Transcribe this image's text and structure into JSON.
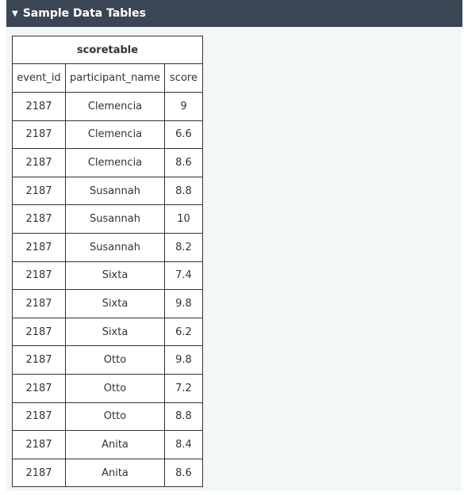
{
  "panel": {
    "title": "Sample Data Tables"
  },
  "table": {
    "caption": "scoretable",
    "columns": [
      "event_id",
      "participant_name",
      "score"
    ],
    "rows": [
      [
        "2187",
        "Clemencia",
        "9"
      ],
      [
        "2187",
        "Clemencia",
        "6.6"
      ],
      [
        "2187",
        "Clemencia",
        "8.6"
      ],
      [
        "2187",
        "Susannah",
        "8.8"
      ],
      [
        "2187",
        "Susannah",
        "10"
      ],
      [
        "2187",
        "Susannah",
        "8.2"
      ],
      [
        "2187",
        "Sixta",
        "7.4"
      ],
      [
        "2187",
        "Sixta",
        "9.8"
      ],
      [
        "2187",
        "Sixta",
        "6.2"
      ],
      [
        "2187",
        "Otto",
        "9.8"
      ],
      [
        "2187",
        "Otto",
        "7.2"
      ],
      [
        "2187",
        "Otto",
        "8.8"
      ],
      [
        "2187",
        "Anita",
        "8.4"
      ],
      [
        "2187",
        "Anita",
        "8.6"
      ]
    ]
  }
}
